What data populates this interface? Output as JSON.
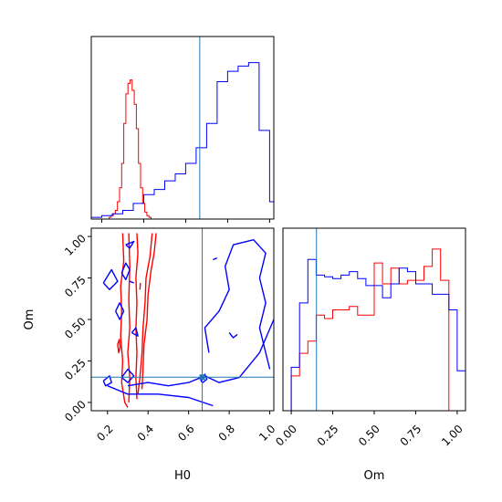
{
  "chart_data": {
    "type": "corner",
    "parameters": [
      "H0",
      "Om"
    ],
    "truth": {
      "H0": 0.667,
      "Om": 0.152
    },
    "truth_color": "#1f77b4",
    "series_colors": [
      "#ff0000",
      "#0000ff"
    ],
    "panels": [
      {
        "id": "hist-H0",
        "type": "histogram",
        "x_param": "H0",
        "xlim": [
          0.15,
          1.02
        ],
        "ylim": [
          0,
          1.05
        ],
        "show_tick_labels": false,
        "series": [
          {
            "color": "#ff0000",
            "edges": [
              0.235,
              0.245,
              0.255,
              0.265,
              0.275,
              0.285,
              0.295,
              0.305,
              0.315,
              0.325,
              0.335,
              0.345,
              0.355,
              0.365,
              0.375,
              0.385,
              0.395,
              0.405,
              0.415,
              0.425,
              0.435
            ],
            "values": [
              0.01,
              0.02,
              0.03,
              0.05,
              0.1,
              0.18,
              0.32,
              0.55,
              0.72,
              0.78,
              0.8,
              0.74,
              0.66,
              0.52,
              0.32,
              0.18,
              0.09,
              0.04,
              0.02,
              0.01
            ]
          },
          {
            "color": "#0000ff",
            "edges": [
              0.15,
              0.2,
              0.25,
              0.3,
              0.35,
              0.4,
              0.45,
              0.5,
              0.55,
              0.6,
              0.65,
              0.7,
              0.75,
              0.8,
              0.85,
              0.9,
              0.95,
              1.0,
              1.02
            ],
            "values": [
              0.01,
              0.02,
              0.03,
              0.05,
              0.09,
              0.14,
              0.17,
              0.22,
              0.26,
              0.32,
              0.41,
              0.55,
              0.79,
              0.85,
              0.88,
              0.9,
              0.51,
              0.1
            ]
          }
        ]
      },
      {
        "id": "contour-H0-Om",
        "type": "contour",
        "x_param": "H0",
        "y_param": "Om",
        "xlim": [
          0.12,
          1.02
        ],
        "ylim": [
          -0.05,
          1.05
        ],
        "xticks": [
          0.2,
          0.4,
          0.6,
          0.8,
          1.0
        ],
        "xtick_labels": [
          "0.2",
          "0.4",
          "0.6",
          "0.8",
          "1.0"
        ],
        "yticks": [
          0.0,
          0.25,
          0.5,
          0.75,
          1.0
        ],
        "ytick_labels": [
          "0.00",
          "0.25",
          "0.50",
          "0.75",
          "1.00"
        ],
        "xlabel": "H0",
        "ylabel": "Om",
        "series": [
          {
            "color": "#ff0000",
            "contours": [
              [
                [
                  0.275,
                  1.02
                ],
                [
                  0.28,
                  0.85
                ],
                [
                  0.265,
                  0.7
                ],
                [
                  0.27,
                  0.55
                ],
                [
                  0.265,
                  0.4
                ],
                [
                  0.275,
                  0.25
                ],
                [
                  0.27,
                  0.12
                ],
                [
                  0.285,
                  0.0
                ],
                [
                  0.3,
                  -0.03
                ]
              ],
              [
                [
                  0.305,
                  1.02
                ],
                [
                  0.31,
                  0.82
                ],
                [
                  0.305,
                  0.62
                ],
                [
                  0.31,
                  0.45
                ],
                [
                  0.3,
                  0.3
                ],
                [
                  0.31,
                  0.15
                ],
                [
                  0.305,
                  0.0
                ]
              ],
              [
                [
                  0.345,
                  1.02
                ],
                [
                  0.35,
                  0.9
                ],
                [
                  0.34,
                  0.75
                ],
                [
                  0.345,
                  0.6
                ],
                [
                  0.34,
                  0.45
                ],
                [
                  0.345,
                  0.3
                ],
                [
                  0.34,
                  0.15
                ],
                [
                  0.345,
                  0.02
                ]
              ],
              [
                [
                  0.42,
                  1.02
                ],
                [
                  0.41,
                  0.88
                ],
                [
                  0.39,
                  0.75
                ],
                [
                  0.385,
                  0.6
                ],
                [
                  0.375,
                  0.45
                ],
                [
                  0.37,
                  0.3
                ],
                [
                  0.36,
                  0.15
                ],
                [
                  0.35,
                  0.05
                ]
              ],
              [
                [
                  0.44,
                  1.02
                ],
                [
                  0.43,
                  0.9
                ],
                [
                  0.415,
                  0.8
                ],
                [
                  0.4,
                  0.65
                ],
                [
                  0.395,
                  0.5
                ],
                [
                  0.38,
                  0.35
                ],
                [
                  0.375,
                  0.2
                ],
                [
                  0.37,
                  0.08
                ]
              ],
              [
                [
                  0.25,
                  0.35
                ],
                [
                  0.255,
                  0.3
                ],
                [
                  0.262,
                  0.33
                ],
                [
                  0.258,
                  0.38
                ],
                [
                  0.25,
                  0.35
                ]
              ],
              [
                [
                  0.36,
                  0.68
                ],
                [
                  0.362,
                  0.72
                ]
              ]
            ]
          },
          {
            "color": "#0000ff",
            "contours": [
              [
                [
                  0.2,
                  0.1
                ],
                [
                  0.3,
                  0.05
                ],
                [
                  0.45,
                  0.05
                ],
                [
                  0.6,
                  0.03
                ],
                [
                  0.72,
                  -0.02
                ]
              ],
              [
                [
                  0.3,
                  0.1
                ],
                [
                  0.4,
                  0.12
                ],
                [
                  0.5,
                  0.1
                ],
                [
                  0.6,
                  0.12
                ],
                [
                  0.68,
                  0.16
                ],
                [
                  0.75,
                  0.12
                ],
                [
                  0.85,
                  0.15
                ],
                [
                  0.95,
                  0.3
                ],
                [
                  1.02,
                  0.5
                ]
              ],
              [
                [
                  0.7,
                  0.3
                ],
                [
                  0.68,
                  0.45
                ],
                [
                  0.75,
                  0.55
                ],
                [
                  0.8,
                  0.68
                ],
                [
                  0.78,
                  0.82
                ],
                [
                  0.82,
                  0.95
                ],
                [
                  0.92,
                  0.98
                ],
                [
                  0.98,
                  0.9
                ],
                [
                  0.95,
                  0.75
                ],
                [
                  0.98,
                  0.6
                ],
                [
                  0.95,
                  0.45
                ],
                [
                  0.98,
                  0.3
                ],
                [
                  1.0,
                  0.2
                ]
              ],
              [
                [
                  0.27,
                  0.15
                ],
                [
                  0.3,
                  0.2
                ],
                [
                  0.33,
                  0.16
                ],
                [
                  0.3,
                  0.12
                ],
                [
                  0.27,
                  0.15
                ]
              ],
              [
                [
                  0.18,
                  0.13
                ],
                [
                  0.21,
                  0.16
                ],
                [
                  0.22,
                  0.12
                ],
                [
                  0.19,
                  0.1
                ],
                [
                  0.18,
                  0.13
                ]
              ],
              [
                [
                  0.18,
                  0.72
                ],
                [
                  0.22,
                  0.8
                ],
                [
                  0.25,
                  0.73
                ],
                [
                  0.21,
                  0.68
                ],
                [
                  0.18,
                  0.72
                ]
              ],
              [
                [
                  0.29,
                  0.95
                ],
                [
                  0.33,
                  0.97
                ],
                [
                  0.31,
                  0.93
                ],
                [
                  0.29,
                  0.95
                ]
              ],
              [
                [
                  0.24,
                  0.55
                ],
                [
                  0.26,
                  0.6
                ],
                [
                  0.28,
                  0.55
                ],
                [
                  0.26,
                  0.5
                ],
                [
                  0.24,
                  0.55
                ]
              ],
              [
                [
                  0.32,
                  0.42
                ],
                [
                  0.34,
                  0.45
                ],
                [
                  0.35,
                  0.4
                ],
                [
                  0.32,
                  0.42
                ]
              ],
              [
                [
                  0.27,
                  0.78
                ],
                [
                  0.29,
                  0.84
                ],
                [
                  0.31,
                  0.8
                ],
                [
                  0.29,
                  0.74
                ],
                [
                  0.27,
                  0.78
                ]
              ],
              [
                [
                  0.31,
                  0.73
                ],
                [
                  0.33,
                  0.72
                ]
              ],
              [
                [
                  0.8,
                  0.42
                ],
                [
                  0.82,
                  0.39
                ],
                [
                  0.84,
                  0.41
                ]
              ],
              [
                [
                  0.72,
                  0.86
                ],
                [
                  0.74,
                  0.87
                ]
              ],
              [
                [
                  0.66,
                  0.13
                ],
                [
                  0.68,
                  0.17
                ],
                [
                  0.69,
                  0.14
                ],
                [
                  0.67,
                  0.12
                ],
                [
                  0.66,
                  0.13
                ]
              ]
            ]
          }
        ]
      },
      {
        "id": "hist-Om",
        "type": "histogram",
        "x_param": "Om",
        "xlim": [
          -0.05,
          1.05
        ],
        "ylim": [
          0,
          1.05
        ],
        "xticks": [
          0.0,
          0.25,
          0.5,
          0.75,
          1.0
        ],
        "xtick_labels": [
          "0.00",
          "0.25",
          "0.50",
          "0.75",
          "1.00"
        ],
        "xlabel": "Om",
        "series": [
          {
            "color": "#ff0000",
            "edges": [
              0.0,
              0.05,
              0.1,
              0.15,
              0.2,
              0.25,
              0.3,
              0.35,
              0.4,
              0.45,
              0.5,
              0.55,
              0.6,
              0.65,
              0.7,
              0.75,
              0.8,
              0.85,
              0.9,
              0.95,
              1.0
            ],
            "values": [
              0.2,
              0.33,
              0.4,
              0.55,
              0.53,
              0.58,
              0.58,
              0.6,
              0.55,
              0.55,
              0.85,
              0.73,
              0.82,
              0.73,
              0.75,
              0.75,
              0.83,
              0.93,
              0.75,
              0.0
            ]
          },
          {
            "color": "#0000ff",
            "edges": [
              0.0,
              0.05,
              0.1,
              0.15,
              0.2,
              0.25,
              0.3,
              0.35,
              0.4,
              0.45,
              0.5,
              0.55,
              0.6,
              0.65,
              0.7,
              0.75,
              0.8,
              0.85,
              0.9,
              0.95,
              1.0,
              1.05
            ],
            "values": [
              0.25,
              0.62,
              0.87,
              0.78,
              0.77,
              0.76,
              0.78,
              0.8,
              0.76,
              0.72,
              0.72,
              0.65,
              0.73,
              0.82,
              0.8,
              0.73,
              0.73,
              0.67,
              0.67,
              0.58,
              0.23
            ]
          }
        ]
      }
    ]
  }
}
